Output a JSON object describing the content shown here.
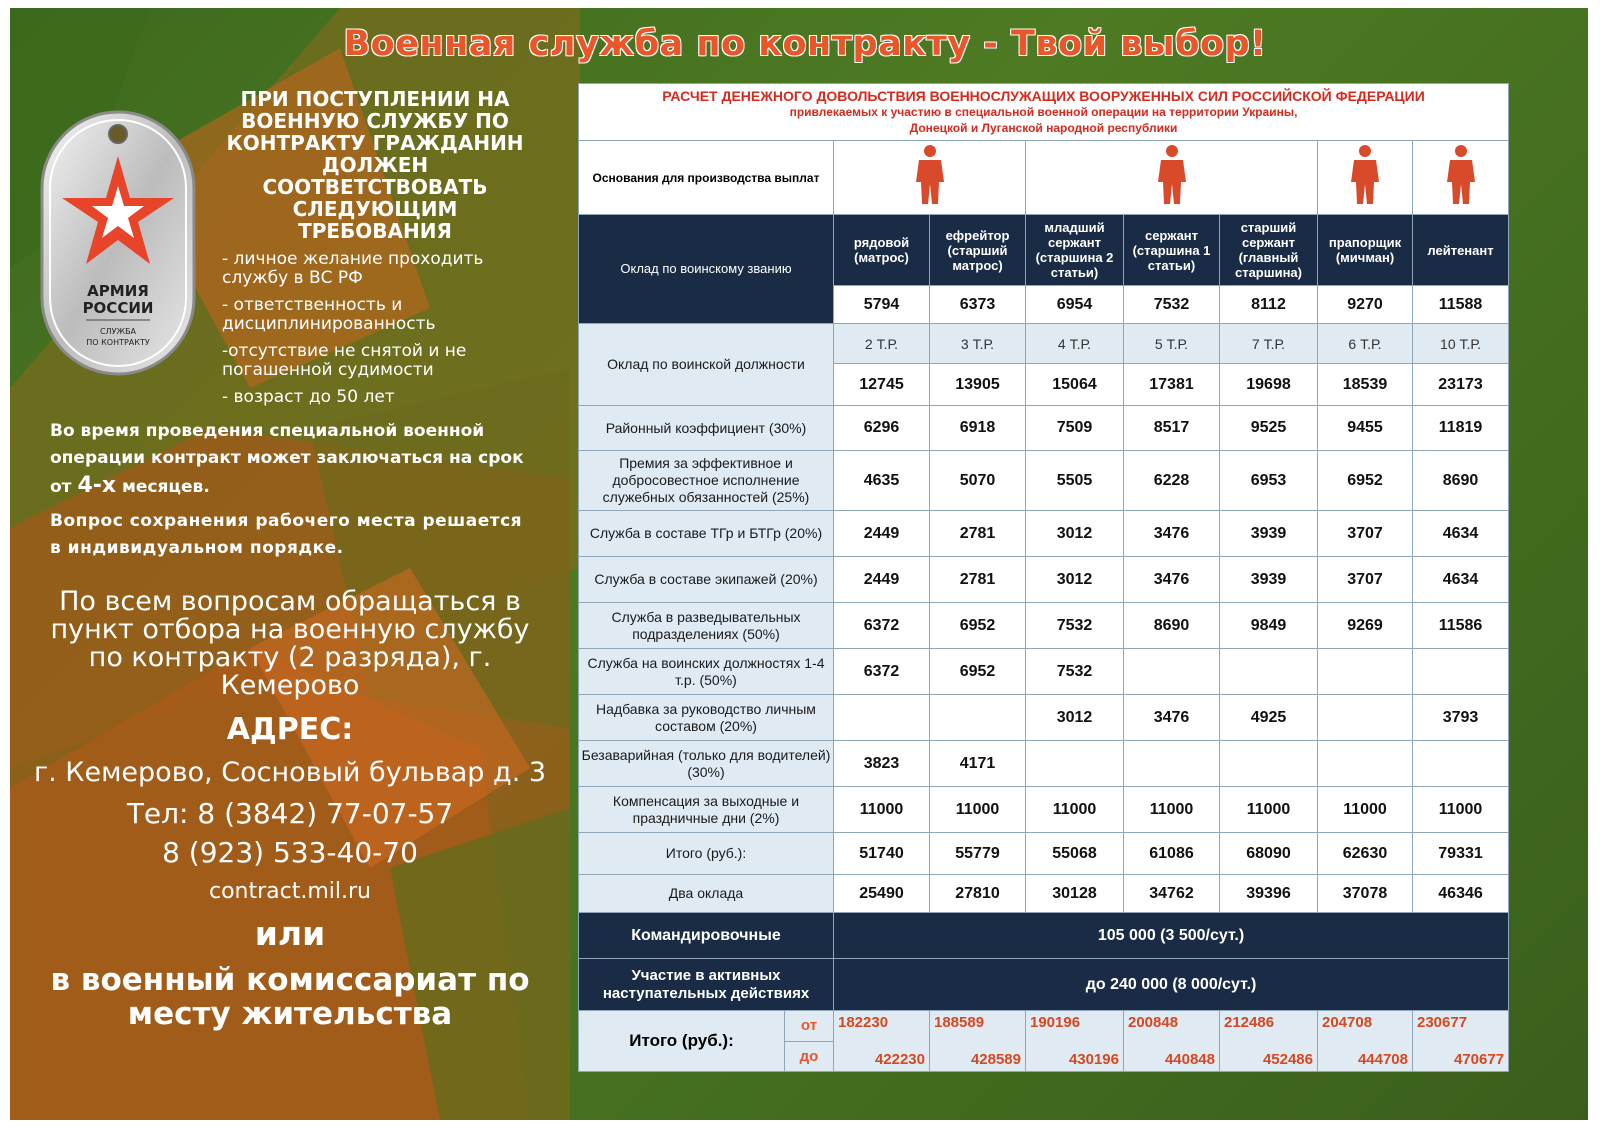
{
  "headline": "Военная служба по контракту - Твой выбор!",
  "badge": {
    "army": "АРМИЯ",
    "russia": "РОССИИ",
    "service": "СЛУЖБА",
    "contract": "ПО КОНТРАКТУ"
  },
  "requirements": {
    "title": "ПРИ ПОСТУПЛЕНИИ НА ВОЕННУЮ СЛУЖБУ ПО КОНТРАКТУ ГРАЖДАНИН ДОЛЖЕН СООТВЕТСТВОВАТЬ СЛЕДУЮЩИМ ТРЕБОВАНИЯ",
    "items": [
      "- личное желание проходить службу в ВС РФ",
      "- ответственность и дисциплинированность",
      "-отсутствие не снятой и не погашенной судимости",
      "- возраст до 50 лет"
    ]
  },
  "info": {
    "p1_start": "Во время проведения специальной военной операции контракт может заключаться на срок от ",
    "p1_big": "4-х",
    "p1_end": " месяцев.",
    "p2": "Вопрос сохранения рабочего места решается в индивидуальном порядке."
  },
  "contact": {
    "line": "По всем вопросам обращаться в пункт отбора на военную службу по контракту (2 разряда), г. Кемерово",
    "address_label": "АДРЕС:",
    "street": "г. Кемерово, Сосновый бульвар д. 3",
    "tel1": "Тел: 8 (3842) 77-07-57",
    "tel2": "8 (923) 533-40-70",
    "site": "contract.mil.ru",
    "or": "или",
    "commissariat": "в военный комиссариат по месту жительства"
  },
  "table": {
    "title": "РАСЧЕТ ДЕНЕЖНОГО ДОВОЛЬСТВИЯ ВОЕННОСЛУЖАЩИХ ВООРУЖЕННЫХ СИЛ РОССИЙСКОЙ ФЕДЕРАЦИИ",
    "subtitle1": "привлекаемых к участию в специальной военной операции на территории Украины,",
    "subtitle2": "Донецкой и Луганской народной республики",
    "basis": "Основания для производства выплат",
    "rank_label": "Оклад по воинскому званию",
    "ranks": [
      "рядовой (матрос)",
      "ефрейтор (старший матрос)",
      "младший сержант (старшина 2 статьи)",
      "сержант (старшина 1 статьи)",
      "старший сержант (главный старшина)",
      "прапорщик (мичман)",
      "лейтенант"
    ],
    "rank_salary": [
      "5794",
      "6373",
      "6954",
      "7532",
      "8112",
      "9270",
      "11588"
    ],
    "position_label": "Оклад по воинской должности",
    "tariffs": [
      "2 Т.Р.",
      "3 Т.Р.",
      "4 Т.Р.",
      "5 Т.Р.",
      "7 Т.Р.",
      "6 Т.Р.",
      "10 Т.Р."
    ],
    "position_salary": [
      "12745",
      "13905",
      "15064",
      "17381",
      "19698",
      "18539",
      "23173"
    ],
    "rows": [
      {
        "label": "Районный коэффициент (30%)",
        "values": [
          "6296",
          "6918",
          "7509",
          "8517",
          "9525",
          "9455",
          "11819"
        ]
      },
      {
        "label": "Премия за эффективное и добросовестное исполнение служебных обязанностей (25%)",
        "values": [
          "4635",
          "5070",
          "5505",
          "6228",
          "6953",
          "6952",
          "8690"
        ]
      },
      {
        "label": "Служба в составе ТГр и БТГр (20%)",
        "values": [
          "2449",
          "2781",
          "3012",
          "3476",
          "3939",
          "3707",
          "4634"
        ]
      },
      {
        "label": "Служба в составе экипажей (20%)",
        "values": [
          "2449",
          "2781",
          "3012",
          "3476",
          "3939",
          "3707",
          "4634"
        ]
      },
      {
        "label": "Служба в разведывательных подразделениях (50%)",
        "values": [
          "6372",
          "6952",
          "7532",
          "8690",
          "9849",
          "9269",
          "11586"
        ]
      },
      {
        "label": "Служба на воинских должностях 1-4 т.р. (50%)",
        "values": [
          "6372",
          "6952",
          "7532",
          "",
          "",
          "",
          ""
        ]
      },
      {
        "label": "Надбавка за руководство личным составом (20%)",
        "values": [
          "",
          "",
          "3012",
          "3476",
          "4925",
          "",
          "3793"
        ]
      },
      {
        "label": "Безаварийная (только для водителей) (30%)",
        "values": [
          "3823",
          "4171",
          "",
          "",
          "",
          "",
          ""
        ]
      },
      {
        "label": "Компенсация за выходные и праздничные дни (2%)",
        "values": [
          "11000",
          "11000",
          "11000",
          "11000",
          "11000",
          "11000",
          "11000"
        ]
      },
      {
        "label": "Итого (руб.):",
        "values": [
          "51740",
          "55779",
          "55068",
          "61086",
          "68090",
          "62630",
          "79331"
        ]
      },
      {
        "label": "Два оклада",
        "values": [
          "25490",
          "27810",
          "30128",
          "34762",
          "39396",
          "37078",
          "46346"
        ]
      }
    ],
    "travel_label": "Командировочные",
    "travel_value": "105 000 (3 500/сут.)",
    "active_label": "Участие в активных наступательных действиях",
    "active_value": "до 240 000 (8 000/сут.)",
    "total_label": "Итого (руб.):",
    "from_label": "от",
    "to_label": "до",
    "total_from": [
      "182230",
      "188589",
      "190196",
      "200848",
      "212486",
      "204708",
      "230677"
    ],
    "total_to": [
      "422230",
      "428589",
      "430196",
      "440848",
      "452486",
      "444708",
      "470677"
    ]
  },
  "colors": {
    "accent": "#e8562a",
    "navy": "#1a2b45",
    "light_blue": "#dfeaf3",
    "red": "#d52b1e",
    "green": "#4d7a22"
  }
}
